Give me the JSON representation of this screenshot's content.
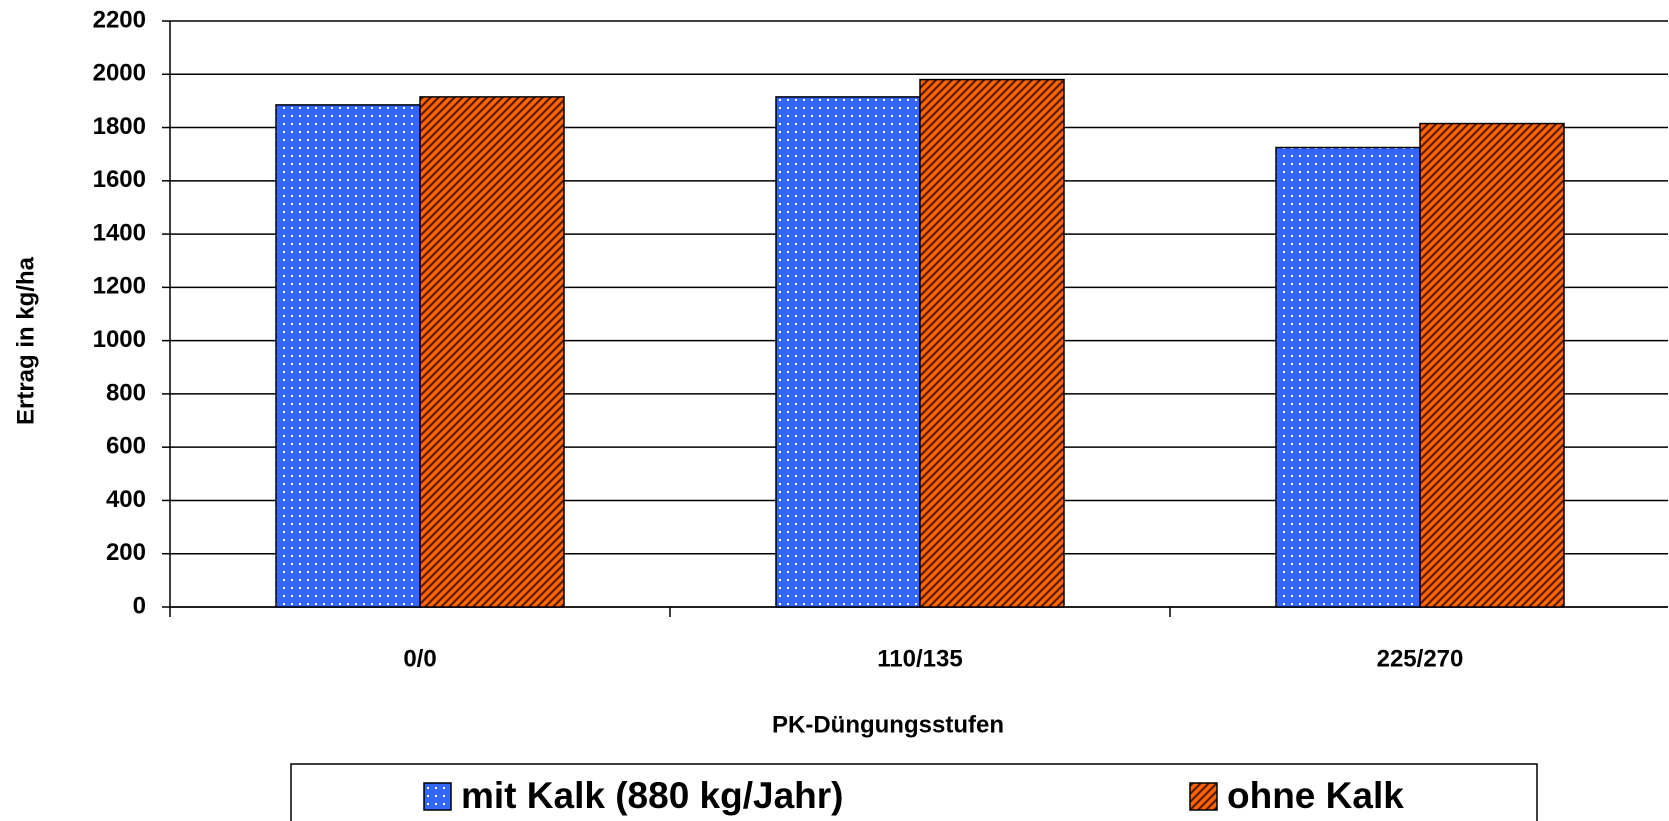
{
  "chart_data": {
    "type": "bar",
    "categories": [
      "0/0",
      "110/135",
      "225/270"
    ],
    "series": [
      {
        "name": "mit Kalk (880 kg/Jahr)",
        "color": "#3366ff",
        "values": [
          1885,
          1915,
          1725
        ]
      },
      {
        "name": "ohne Kalk",
        "color": "#ff6600",
        "values": [
          1915,
          1980,
          1815
        ]
      }
    ],
    "x_label": "PK-Düngungsstufen",
    "y_label": "Ertrag in kg/ha",
    "ylim": [
      0,
      2200
    ],
    "yticks": [
      0,
      200,
      400,
      600,
      800,
      1000,
      1200,
      1400,
      1600,
      1800,
      2000,
      2200
    ],
    "grid": true
  }
}
